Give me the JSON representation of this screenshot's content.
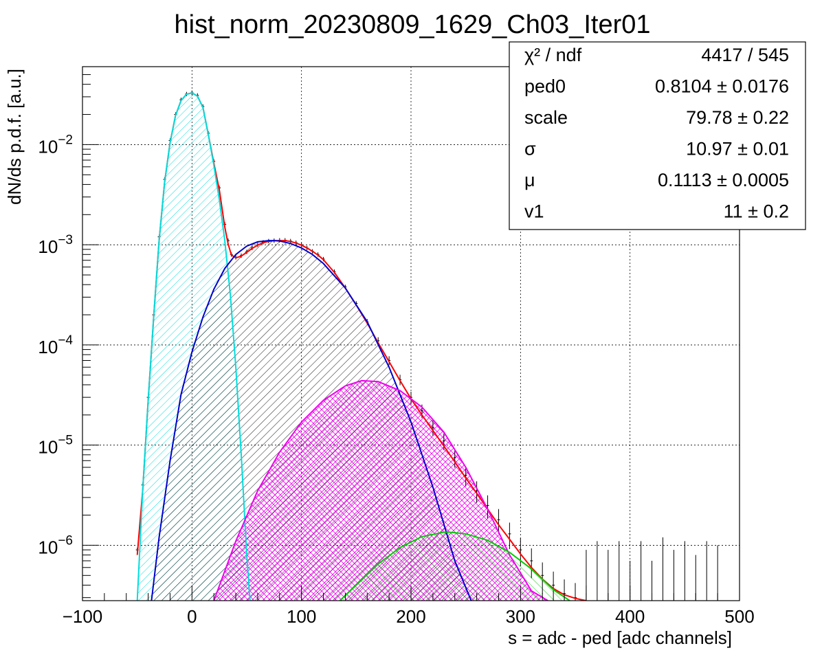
{
  "chart_data": {
    "type": "line",
    "title": "hist_norm_20230809_1629_Ch03_Iter01",
    "xlabel": "s = adc - ped [adc channels]",
    "ylabel": "dN/ds p.d.f. [a.u.]",
    "xlim": [
      -100,
      500
    ],
    "ylim": [
      2.8e-07,
      0.06
    ],
    "yscale": "log",
    "grid": true,
    "x_ticks": [
      -100,
      0,
      100,
      200,
      300,
      400,
      500
    ],
    "x_tick_labels": [
      "−100",
      "0",
      "100",
      "200",
      "300",
      "400",
      "500"
    ],
    "y_ticks": [
      1e-06,
      1e-05,
      0.0001,
      0.001,
      0.01
    ],
    "y_tick_labels": [
      {
        "base": "10",
        "exp": "−6"
      },
      {
        "base": "10",
        "exp": "−5"
      },
      {
        "base": "10",
        "exp": "−4"
      },
      {
        "base": "10",
        "exp": "−3"
      },
      {
        "base": "10",
        "exp": "−2"
      }
    ],
    "series": [
      {
        "role": "data",
        "color": "#000000",
        "x": [
          -50,
          -45,
          -40,
          -35,
          -30,
          -25,
          -20,
          -15,
          -10,
          -5,
          0,
          5,
          10,
          15,
          20,
          25,
          30,
          33,
          36,
          40,
          45,
          50,
          55,
          60,
          65,
          70,
          75,
          80,
          85,
          90,
          95,
          100,
          105,
          110,
          115,
          120,
          130,
          140,
          150,
          160,
          170,
          180,
          190,
          200,
          210,
          220,
          230,
          240,
          250,
          260,
          270,
          280,
          290,
          300,
          310,
          320,
          330,
          340,
          350,
          360
        ],
        "y": [
          9e-07,
          4e-06,
          3e-05,
          0.0002,
          0.0012,
          0.0045,
          0.011,
          0.02,
          0.028,
          0.032,
          0.033,
          0.031,
          0.024,
          0.013,
          0.0068,
          0.0037,
          0.0016,
          0.0011,
          0.0008,
          0.00075,
          0.00078,
          0.00085,
          0.00093,
          0.001,
          0.00106,
          0.00109,
          0.0011,
          0.00111,
          0.00111,
          0.00109,
          0.00105,
          0.001,
          0.00093,
          0.00086,
          0.0008,
          0.00072,
          0.00054,
          0.00038,
          0.00026,
          0.00017,
          0.00011,
          7e-05,
          4.5e-05,
          3e-05,
          2.2e-05,
          1.5e-05,
          1.1e-05,
          7.5e-06,
          5e-06,
          3.5e-06,
          2.5e-06,
          1.8e-06,
          1.3e-06,
          9e-07,
          7e-07,
          5e-07,
          4e-07,
          3.3e-07,
          3e-07,
          2.8e-07
        ]
      },
      {
        "role": "total-fit",
        "color": "#ff0000",
        "x": [
          -50,
          -45,
          -40,
          -35,
          -30,
          -25,
          -20,
          -15,
          -10,
          -5,
          0,
          5,
          10,
          15,
          20,
          25,
          30,
          33,
          36,
          40,
          45,
          50,
          55,
          60,
          65,
          70,
          75,
          80,
          85,
          90,
          95,
          100,
          105,
          110,
          115,
          120,
          130,
          140,
          150,
          160,
          170,
          180,
          190,
          200,
          210,
          220,
          230,
          240,
          250,
          260,
          270,
          280,
          290,
          300,
          310,
          320,
          330,
          340,
          350,
          360
        ],
        "y": [
          8e-07,
          3.5e-06,
          2.8e-05,
          0.00019,
          0.0011,
          0.0042,
          0.0105,
          0.0195,
          0.0275,
          0.0318,
          0.0328,
          0.0305,
          0.0235,
          0.0125,
          0.0065,
          0.0035,
          0.0015,
          0.00102,
          0.00079,
          0.00074,
          0.00077,
          0.00084,
          0.00092,
          0.00099,
          0.00105,
          0.00108,
          0.0011,
          0.0011,
          0.0011,
          0.00108,
          0.00104,
          0.00099,
          0.00093,
          0.00086,
          0.00079,
          0.00071,
          0.00053,
          0.00037,
          0.00025,
          0.000165,
          0.000105,
          6.8e-05,
          4.4e-05,
          2.9e-05,
          2e-05,
          1.4e-05,
          9.8e-06,
          6.8e-06,
          4.7e-06,
          3.3e-06,
          2.3e-06,
          1.6e-06,
          1.15e-06,
          8.2e-07,
          6e-07,
          4.6e-07,
          3.7e-07,
          3.2e-07,
          2.95e-07,
          2.8e-07
        ]
      },
      {
        "role": "pedestal-component",
        "color": "#00dddd",
        "x": [
          -50,
          -45,
          -40,
          -35,
          -30,
          -25,
          -20,
          -15,
          -10,
          -5,
          0,
          5,
          10,
          15,
          20,
          25,
          30,
          35,
          40,
          45,
          50,
          53
        ],
        "y": [
          2.8e-07,
          3.5e-06,
          2.8e-05,
          0.00019,
          0.0011,
          0.0042,
          0.0105,
          0.0195,
          0.0275,
          0.0318,
          0.0328,
          0.0305,
          0.0235,
          0.0125,
          0.0062,
          0.0028,
          0.0011,
          0.00032,
          6e-05,
          8e-06,
          8e-07,
          2.8e-07
        ]
      },
      {
        "role": "1-pe-component",
        "color": "#0000cc",
        "x": [
          -37,
          -30,
          -20,
          -10,
          0,
          10,
          20,
          30,
          40,
          50,
          60,
          70,
          75,
          80,
          90,
          100,
          110,
          120,
          140,
          160,
          180,
          200,
          220,
          240,
          255
        ],
        "y": [
          2.8e-07,
          1.2e-06,
          7e-06,
          3.2e-05,
          8.5e-05,
          0.00019,
          0.00036,
          0.00058,
          0.0008,
          0.00097,
          0.00107,
          0.0011,
          0.0011,
          0.00109,
          0.00103,
          0.00093,
          0.0008,
          0.00065,
          0.00037,
          0.00017,
          6e-05,
          1.7e-05,
          3.8e-06,
          7e-07,
          2.8e-07
        ]
      },
      {
        "role": "2-pe-component",
        "color": "#ee00ee",
        "x": [
          20,
          40,
          60,
          80,
          100,
          120,
          140,
          155,
          170,
          190,
          210,
          230,
          250,
          270,
          290,
          310,
          325
        ],
        "y": [
          2.8e-07,
          1.1e-06,
          3.5e-06,
          8.5e-06,
          1.7e-05,
          2.8e-05,
          3.9e-05,
          4.4e-05,
          4.3e-05,
          3.5e-05,
          2.4e-05,
          1.35e-05,
          6e-06,
          2.3e-06,
          8e-07,
          3.5e-07,
          2.8e-07
        ]
      },
      {
        "role": "3-pe-component",
        "color": "#00cc00",
        "x": [
          135,
          150,
          170,
          190,
          210,
          230,
          235,
          250,
          270,
          290,
          310,
          330,
          345
        ],
        "y": [
          2.8e-07,
          4e-07,
          6.5e-07,
          9.5e-07,
          1.22e-06,
          1.35e-06,
          1.35e-06,
          1.3e-06,
          1.12e-06,
          8.5e-07,
          5.8e-07,
          3.6e-07,
          2.8e-07
        ]
      }
    ],
    "sparse_points": {
      "x": [
        360,
        370,
        380,
        390,
        400,
        410,
        420,
        430,
        440,
        450,
        460,
        470,
        480
      ],
      "y": [
        9e-07,
        1.1e-06,
        9e-07,
        1.1e-06,
        7e-07,
        1.1e-06,
        7e-07,
        1.2e-06,
        9e-07,
        1.1e-06,
        8e-07,
        1.1e-06,
        1e-06
      ]
    },
    "stats_box": {
      "position": "top-right",
      "rows": [
        {
          "label": "χ² / ndf",
          "value": "4417 / 545"
        },
        {
          "label": "ped0",
          "value": "0.8104 ± 0.0176"
        },
        {
          "label": "scale",
          "value": "79.78 ± 0.22"
        },
        {
          "label": "σ",
          "value": "10.97 ± 0.01"
        },
        {
          "label": "μ",
          "value": "0.1113 ± 0.0005"
        },
        {
          "label": "v1",
          "value": "11 ± 0.2"
        }
      ]
    }
  }
}
